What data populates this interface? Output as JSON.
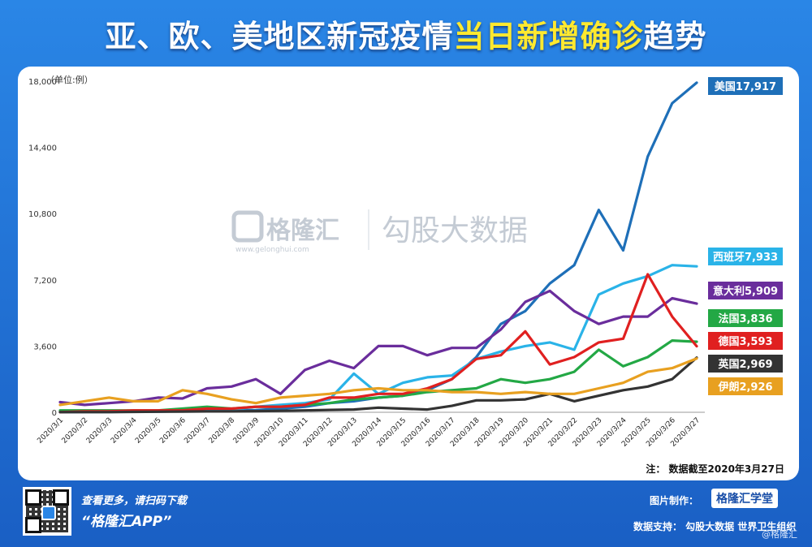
{
  "title": {
    "part_white": "亚、欧、美地区新冠疫情",
    "part_yellow": "当日新增确诊",
    "part_white2": "趋势"
  },
  "footer": {
    "scan_text": "查看更多，请扫码下载",
    "app_text": "“格隆汇APP”",
    "made_by": "图片制作：",
    "logo_text": "格隆汇学堂",
    "data_support": "数据支持：  勾股大数据  世界卫生组织",
    "corner_watermark": "@格隆汇"
  },
  "watermark": {
    "brand": "格隆汇",
    "brand_url": "www.gelonghui.com",
    "product": "勾股大数据"
  },
  "chart_data": {
    "type": "line",
    "unit_label": "（单位:例）",
    "note": "注：  数据截至2020年3月27日",
    "ylim": [
      0,
      18000
    ],
    "yticks": [
      0,
      3600,
      7200,
      10800,
      14400,
      18000
    ],
    "ytick_labels": [
      "0",
      "3,600",
      "7,200",
      "10,800",
      "14,400",
      "18,000"
    ],
    "x": [
      "2020/3/1",
      "2020/3/2",
      "2020/3/3",
      "2020/3/4",
      "2020/3/5",
      "2020/3/6",
      "2020/3/7",
      "2020/3/8",
      "2020/3/9",
      "2020/3/10",
      "2020/3/11",
      "2020/3/12",
      "2020/3/13",
      "2020/3/14",
      "2020/3/15",
      "2020/3/16",
      "2020/3/17",
      "2020/3/18",
      "2020/3/19",
      "2020/3/20",
      "2020/3/21",
      "2020/3/22",
      "2020/3/23",
      "2020/3/24",
      "2020/3/25",
      "2020/3/26",
      "2020/3/27"
    ],
    "grid": false,
    "legend": "end-of-line labels",
    "series": [
      {
        "name": "美国",
        "label": "美国17,917",
        "color": "#1e6fb8",
        "values": [
          10,
          20,
          20,
          30,
          40,
          60,
          80,
          100,
          120,
          200,
          300,
          500,
          600,
          800,
          900,
          1200,
          1800,
          3000,
          4800,
          5500,
          7000,
          8000,
          11000,
          8800,
          13900,
          16800,
          17917
        ]
      },
      {
        "name": "西班牙",
        "label": "西班牙7,933",
        "color": "#2ab3e8",
        "values": [
          30,
          40,
          40,
          50,
          50,
          80,
          100,
          150,
          300,
          400,
          500,
          700,
          2100,
          1000,
          1600,
          1900,
          2000,
          2900,
          3300,
          3600,
          3800,
          3400,
          6400,
          7000,
          7400,
          8000,
          7933
        ]
      },
      {
        "name": "意大利",
        "label": "意大利5,909",
        "color": "#6a2d9c",
        "values": [
          550,
          400,
          500,
          600,
          800,
          750,
          1300,
          1400,
          1800,
          1000,
          2300,
          2800,
          2400,
          3600,
          3600,
          3100,
          3500,
          3500,
          4500,
          6000,
          6600,
          5500,
          4800,
          5200,
          5200,
          6200,
          5909
        ]
      },
      {
        "name": "法国",
        "label": "法国3,836",
        "color": "#23a845",
        "values": [
          100,
          100,
          100,
          100,
          100,
          200,
          300,
          200,
          300,
          300,
          400,
          500,
          700,
          800,
          900,
          1100,
          1200,
          1300,
          1800,
          1600,
          1800,
          2200,
          3400,
          2500,
          3000,
          3900,
          3836
        ]
      },
      {
        "name": "德国",
        "label": "德国3,593",
        "color": "#e02020",
        "values": [
          10,
          50,
          50,
          100,
          100,
          100,
          200,
          200,
          300,
          300,
          400,
          800,
          800,
          1000,
          1000,
          1300,
          1800,
          2900,
          3100,
          4400,
          2600,
          3000,
          3800,
          4000,
          7500,
          5200,
          3593
        ]
      },
      {
        "name": "英国",
        "label": "英国2,969",
        "color": "#333333",
        "values": [
          10,
          10,
          10,
          20,
          30,
          40,
          50,
          50,
          60,
          80,
          100,
          130,
          150,
          250,
          200,
          150,
          350,
          650,
          650,
          700,
          1000,
          600,
          900,
          1200,
          1400,
          1800,
          2969
        ]
      },
      {
        "name": "伊朗",
        "label": "伊朗2,926",
        "color": "#e8a020",
        "values": [
          400,
          600,
          800,
          600,
          600,
          1200,
          1000,
          700,
          500,
          800,
          900,
          1000,
          1200,
          1300,
          1200,
          1200,
          1100,
          1100,
          1000,
          1100,
          1000,
          1000,
          1300,
          1600,
          2200,
          2400,
          2926
        ]
      }
    ]
  }
}
